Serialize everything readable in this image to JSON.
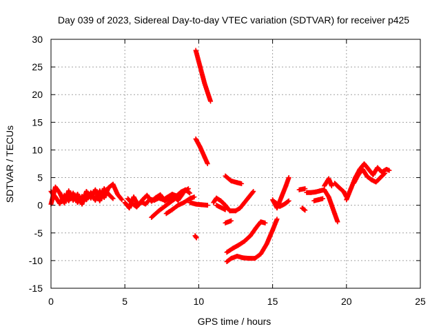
{
  "chart_data": {
    "type": "scatter",
    "title": "Day 039 of 2023, Sidereal Day-to-day VTEC variation (SDTVAR) for receiver p425",
    "xlabel": "GPS time / hours",
    "ylabel": "SDTVAR / TECUs",
    "xlim": [
      0,
      25
    ],
    "ylim": [
      -15,
      30
    ],
    "xticks": [
      0,
      5,
      10,
      15,
      20,
      25
    ],
    "yticks": [
      -15,
      -10,
      -5,
      0,
      5,
      10,
      15,
      20,
      25,
      30
    ],
    "grid": true,
    "marker": "plus",
    "series_color": "#ff0000",
    "segments": [
      [
        [
          0.0,
          2.5
        ],
        [
          0.3,
          1.5
        ],
        [
          0.6,
          0.3
        ],
        [
          0.9,
          1.8
        ],
        [
          1.2,
          0.8
        ],
        [
          1.5,
          2.2
        ],
        [
          1.8,
          0.5
        ],
        [
          2.1,
          1.6
        ],
        [
          2.4,
          1.0
        ],
        [
          2.7,
          2.3
        ],
        [
          3.0,
          0.9
        ],
        [
          3.3,
          2.6
        ],
        [
          3.6,
          1.4
        ],
        [
          3.9,
          3.2
        ],
        [
          4.2,
          3.8
        ],
        [
          4.5,
          2.0
        ],
        [
          4.8,
          1.0
        ]
      ],
      [
        [
          0.0,
          0.2
        ],
        [
          0.3,
          3.3
        ],
        [
          0.6,
          2.2
        ],
        [
          0.9,
          0.4
        ],
        [
          1.2,
          2.6
        ],
        [
          1.5,
          0.9
        ],
        [
          1.8,
          2.0
        ],
        [
          2.1,
          0.2
        ],
        [
          2.4,
          2.5
        ],
        [
          2.7,
          1.3
        ],
        [
          3.0,
          2.8
        ],
        [
          3.3,
          0.8
        ],
        [
          3.6,
          3.0
        ],
        [
          3.9,
          2.0
        ],
        [
          4.2,
          1.2
        ]
      ],
      [
        [
          5.0,
          0.5
        ],
        [
          5.3,
          -0.5
        ],
        [
          5.6,
          1.5
        ],
        [
          5.9,
          0.0
        ],
        [
          6.2,
          1.0
        ],
        [
          6.5,
          1.8
        ],
        [
          6.8,
          0.7
        ],
        [
          7.1,
          1.4
        ],
        [
          7.4,
          1.9
        ],
        [
          7.7,
          0.8
        ],
        [
          8.0,
          1.2
        ],
        [
          8.3,
          1.6
        ],
        [
          8.6,
          0.9
        ],
        [
          8.9,
          2.0
        ]
      ],
      [
        [
          5.2,
          1.2
        ],
        [
          5.5,
          0.3
        ],
        [
          5.8,
          -0.3
        ],
        [
          6.1,
          0.6
        ],
        [
          6.4,
          0.2
        ],
        [
          6.7,
          1.1
        ],
        [
          7.0,
          0.9
        ],
        [
          7.3,
          1.3
        ],
        [
          7.6,
          1.0
        ],
        [
          7.9,
          1.5
        ],
        [
          8.2,
          2.0
        ],
        [
          8.5,
          1.7
        ],
        [
          8.8,
          2.4
        ],
        [
          9.1,
          2.8
        ],
        [
          9.4,
          2.2
        ]
      ],
      [
        [
          6.8,
          -2.2
        ],
        [
          7.3,
          -1.0
        ],
        [
          7.8,
          0.0
        ],
        [
          8.3,
          1.0
        ],
        [
          8.8,
          2.0
        ],
        [
          9.3,
          3.0
        ]
      ],
      [
        [
          7.8,
          -1.5
        ],
        [
          8.2,
          -0.8
        ],
        [
          8.6,
          0.0
        ],
        [
          9.0,
          0.5
        ],
        [
          9.4,
          1.2
        ],
        [
          9.7,
          1.5
        ]
      ],
      [
        [
          9.4,
          0.5
        ],
        [
          9.8,
          0.2
        ],
        [
          10.2,
          0.1
        ],
        [
          10.6,
          0.0
        ]
      ],
      [
        [
          9.75,
          -5.5
        ],
        [
          9.85,
          -5.9
        ]
      ],
      [
        [
          9.8,
          28.0
        ],
        [
          10.1,
          25.0
        ],
        [
          10.4,
          22.0
        ],
        [
          10.8,
          18.8
        ]
      ],
      [
        [
          9.8,
          12.0
        ],
        [
          10.1,
          10.5
        ],
        [
          10.4,
          8.7
        ],
        [
          10.6,
          7.5
        ]
      ],
      [
        [
          11.0,
          0.5
        ],
        [
          11.2,
          1.3
        ],
        [
          11.5,
          0.8
        ],
        [
          11.8,
          0.0
        ],
        [
          12.1,
          -1.0
        ],
        [
          12.5,
          -1.0
        ],
        [
          12.8,
          -0.5
        ],
        [
          13.1,
          0.5
        ],
        [
          13.4,
          1.5
        ],
        [
          13.7,
          2.5
        ]
      ],
      [
        [
          11.2,
          0.0
        ],
        [
          11.5,
          -0.4
        ],
        [
          11.8,
          -0.8
        ]
      ],
      [
        [
          11.8,
          -3.2
        ],
        [
          12.2,
          -2.8
        ]
      ],
      [
        [
          11.8,
          5.3
        ],
        [
          12.2,
          4.4
        ],
        [
          12.6,
          4.1
        ],
        [
          12.9,
          3.9
        ]
      ],
      [
        [
          11.9,
          -10.2
        ],
        [
          12.2,
          -9.6
        ],
        [
          12.6,
          -9.2
        ],
        [
          13.0,
          -9.5
        ],
        [
          13.4,
          -9.6
        ],
        [
          13.8,
          -9.6
        ],
        [
          14.2,
          -8.8
        ],
        [
          14.6,
          -7.0
        ],
        [
          15.0,
          -4.5
        ],
        [
          15.3,
          -2.5
        ]
      ],
      [
        [
          11.9,
          -8.5
        ],
        [
          12.3,
          -7.8
        ],
        [
          12.7,
          -7.2
        ],
        [
          13.1,
          -6.5
        ],
        [
          13.5,
          -5.5
        ],
        [
          13.9,
          -4.0
        ],
        [
          14.2,
          -3.0
        ],
        [
          14.5,
          -3.2
        ]
      ],
      [
        [
          15.0,
          1.0
        ],
        [
          15.3,
          -0.5
        ],
        [
          15.6,
          1.5
        ],
        [
          15.9,
          3.5
        ],
        [
          16.1,
          5.0
        ]
      ],
      [
        [
          15.2,
          0.5
        ],
        [
          15.5,
          -0.2
        ],
        [
          15.8,
          0.2
        ],
        [
          16.1,
          0.8
        ]
      ],
      [
        [
          16.8,
          2.8
        ],
        [
          17.2,
          3.0
        ]
      ],
      [
        [
          17.0,
          -0.5
        ],
        [
          17.2,
          -0.9
        ]
      ],
      [
        [
          17.3,
          2.3
        ],
        [
          17.6,
          2.3
        ],
        [
          17.9,
          2.4
        ],
        [
          18.2,
          2.6
        ],
        [
          18.5,
          2.8
        ],
        [
          18.8,
          1.5
        ],
        [
          19.0,
          0.0
        ],
        [
          19.2,
          -1.5
        ],
        [
          19.4,
          -3.0
        ]
      ],
      [
        [
          17.8,
          0.8
        ],
        [
          18.1,
          1.0
        ],
        [
          18.4,
          1.2
        ]
      ],
      [
        [
          18.5,
          3.5
        ],
        [
          18.8,
          4.8
        ],
        [
          19.0,
          3.5
        ]
      ],
      [
        [
          19.2,
          4.0
        ],
        [
          19.5,
          3.2
        ],
        [
          19.8,
          2.5
        ],
        [
          20.0,
          1.5
        ]
      ],
      [
        [
          20.0,
          1.0
        ],
        [
          20.3,
          3.0
        ],
        [
          20.6,
          5.0
        ],
        [
          20.9,
          6.5
        ],
        [
          21.2,
          7.5
        ],
        [
          21.5,
          6.5
        ],
        [
          21.8,
          5.5
        ],
        [
          22.1,
          6.8
        ],
        [
          22.4,
          6.0
        ],
        [
          22.7,
          6.5
        ],
        [
          22.9,
          6.3
        ]
      ],
      [
        [
          20.5,
          4.0
        ],
        [
          20.8,
          5.5
        ],
        [
          21.1,
          6.5
        ],
        [
          21.4,
          5.2
        ],
        [
          21.7,
          4.6
        ],
        [
          22.0,
          4.2
        ],
        [
          22.3,
          5.0
        ],
        [
          22.6,
          5.8
        ]
      ]
    ]
  }
}
